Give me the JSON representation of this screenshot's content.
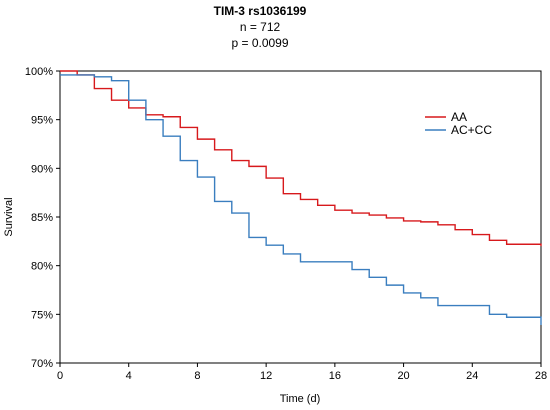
{
  "chart_data": {
    "type": "line",
    "title": "TIM-3 rs1036199",
    "subtitle_lines": [
      "n = 712",
      "p = 0.0099"
    ],
    "xlabel": "Time (d)",
    "ylabel": "Survival",
    "xlim": [
      0,
      28
    ],
    "ylim": [
      70,
      100
    ],
    "x_ticks": [
      0,
      4,
      8,
      12,
      16,
      20,
      24,
      28
    ],
    "x_tick_labels": [
      "0",
      "4",
      "8",
      "12",
      "16",
      "20",
      "24",
      "28"
    ],
    "y_ticks": [
      70,
      75,
      80,
      85,
      90,
      95,
      100
    ],
    "y_tick_labels": [
      "70%",
      "75%",
      "80%",
      "85%",
      "90%",
      "95%",
      "100%"
    ],
    "grid": false,
    "legend_position": "right",
    "step": true,
    "series": [
      {
        "name": "AA",
        "color": "#d7191c",
        "x": [
          0,
          1,
          2,
          3,
          4,
          5,
          6,
          7,
          8,
          9,
          10,
          11,
          12,
          13,
          14,
          15,
          16,
          17,
          18,
          19,
          20,
          21,
          22,
          23,
          24,
          25,
          26,
          28
        ],
        "y": [
          100,
          99.6,
          98.2,
          97.0,
          96.2,
          95.5,
          95.3,
          94.2,
          93.0,
          91.9,
          90.8,
          90.2,
          89.0,
          87.4,
          86.8,
          86.2,
          85.7,
          85.4,
          85.2,
          84.9,
          84.6,
          84.5,
          84.2,
          83.7,
          83.2,
          82.6,
          82.2,
          82.0
        ]
      },
      {
        "name": "AC+CC",
        "color": "#3a7ebf",
        "x": [
          0,
          2,
          3,
          4,
          5,
          6,
          7,
          8,
          9,
          10,
          11,
          12,
          13,
          14,
          17,
          18,
          19,
          20,
          21,
          22,
          25,
          26,
          28
        ],
        "y": [
          99.6,
          99.4,
          99.0,
          97.0,
          95.0,
          93.3,
          90.8,
          89.1,
          86.6,
          85.4,
          82.9,
          82.1,
          81.2,
          80.4,
          79.6,
          78.8,
          78.0,
          77.2,
          76.7,
          75.9,
          75.0,
          74.7,
          73.9
        ]
      }
    ]
  }
}
